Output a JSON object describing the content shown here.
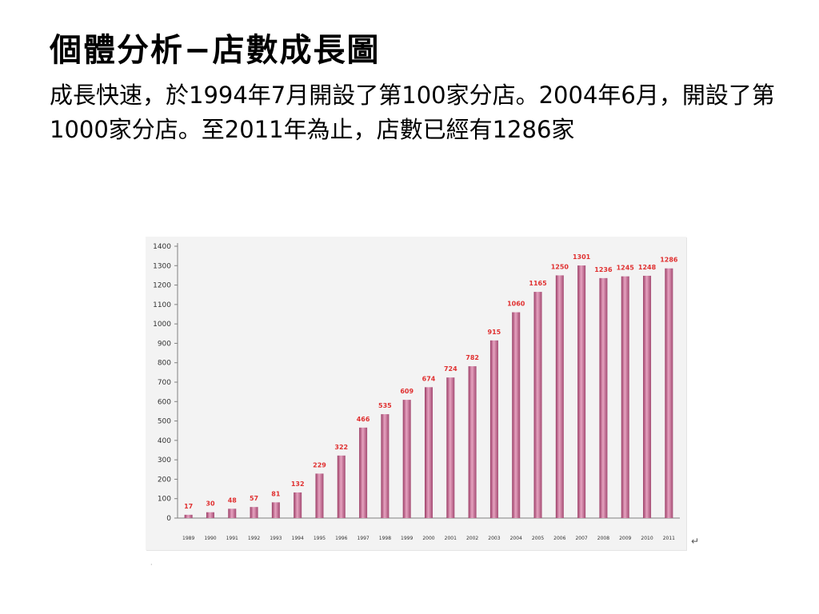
{
  "slide": {
    "title": "個體分析−店數成長圖",
    "body": "成長快速，於1994年7月開設了第100家分店。2004年6月，開設了第1000家分店。至2011年為止，店數已經有1286家"
  },
  "chart_data": {
    "type": "bar",
    "categories": [
      "1989",
      "1990",
      "1991",
      "1992",
      "1993",
      "1994",
      "1995",
      "1996",
      "1997",
      "1998",
      "1999",
      "2000",
      "2001",
      "2002",
      "2003",
      "2004",
      "2005",
      "2006",
      "2007",
      "2008",
      "2009",
      "2010",
      "2011"
    ],
    "values": [
      17,
      30,
      48,
      57,
      81,
      132,
      229,
      322,
      466,
      535,
      609,
      674,
      724,
      782,
      915,
      1060,
      1165,
      1250,
      1301,
      1236,
      1245,
      1248,
      1286
    ],
    "ylim": [
      0,
      1400
    ],
    "yticks": [
      0,
      100,
      200,
      300,
      400,
      500,
      600,
      700,
      800,
      900,
      1000,
      1100,
      1200,
      1300,
      1400
    ],
    "grid": false,
    "bar_color": "#c06a8e",
    "label_color": "#e03030"
  },
  "marks": {
    "return_symbol": "↵",
    "dot": "·"
  }
}
